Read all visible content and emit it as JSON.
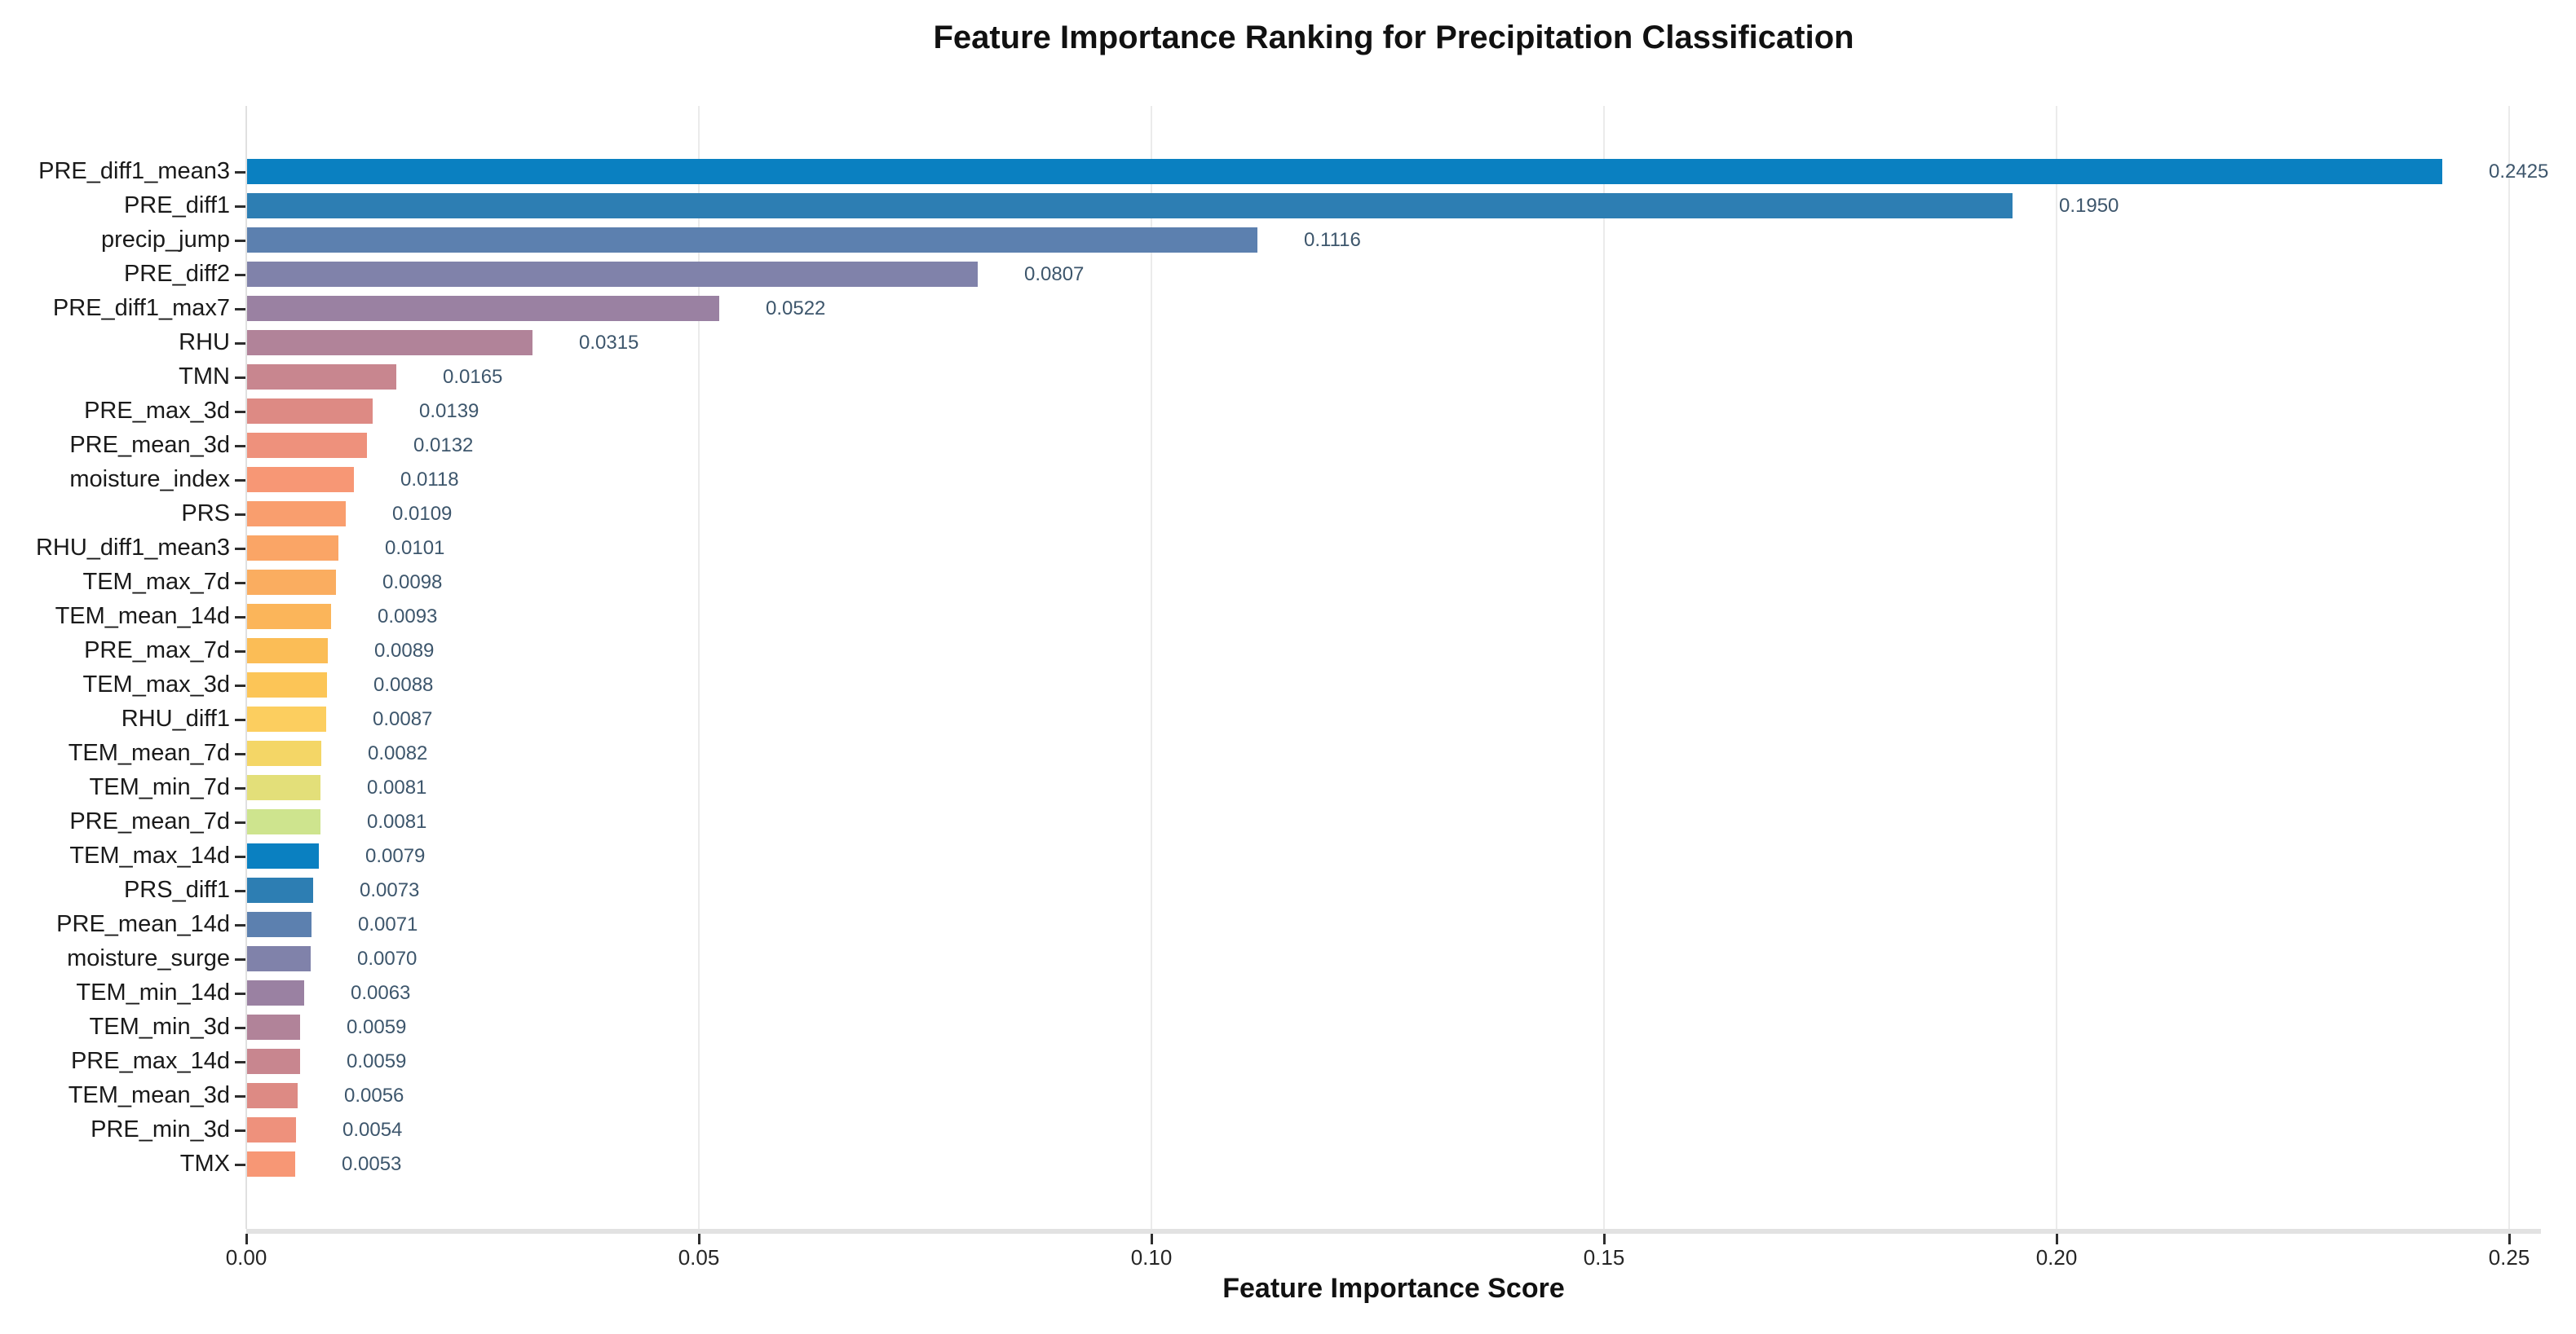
{
  "chart_data": {
    "type": "bar",
    "orientation": "horizontal",
    "title": "Feature Importance Ranking for Precipitation Classification",
    "xlabel": "Feature Importance Score",
    "ylabel": "",
    "legend": "none",
    "grid": "vertical-gridlines-on",
    "categories": [
      "PRE_diff1_mean3",
      "PRE_diff1",
      "precip_jump",
      "PRE_diff2",
      "PRE_diff1_max7",
      "RHU",
      "TMN",
      "PRE_max_3d",
      "PRE_mean_3d",
      "moisture_index",
      "PRS",
      "RHU_diff1_mean3",
      "TEM_max_7d",
      "TEM_mean_14d",
      "PRE_max_7d",
      "TEM_max_3d",
      "RHU_diff1",
      "TEM_mean_7d",
      "TEM_min_7d",
      "PRE_mean_7d",
      "TEM_max_14d",
      "PRS_diff1",
      "PRE_mean_14d",
      "moisture_surge",
      "TEM_min_14d",
      "TEM_min_3d",
      "PRE_max_14d",
      "TEM_mean_3d",
      "PRE_min_3d",
      "TMX"
    ],
    "values": [
      0.2425,
      0.195,
      0.1116,
      0.0807,
      0.0522,
      0.0315,
      0.0165,
      0.0139,
      0.0132,
      0.0118,
      0.0109,
      0.0101,
      0.0098,
      0.0093,
      0.0089,
      0.0088,
      0.0087,
      0.0082,
      0.0081,
      0.0081,
      0.0079,
      0.0073,
      0.0071,
      0.007,
      0.0063,
      0.0059,
      0.0059,
      0.0056,
      0.0054,
      0.0053
    ],
    "value_label_decimals": 4,
    "xlim": [
      0,
      0.2535
    ],
    "xtick_values": [
      0,
      0.05,
      0.1,
      0.15,
      0.2,
      0.25
    ],
    "xtick_labels": [
      "0.00",
      "0.05",
      "0.10",
      "0.15",
      "0.20",
      "0.25"
    ],
    "palette_cycle": [
      "#0a80c1",
      "#2d7eb3",
      "#5c80af",
      "#8082aa",
      "#9a81a2",
      "#b18399",
      "#c8868f",
      "#dd8a84",
      "#ee917c",
      "#f79775",
      "#f99e6e",
      "#faa566",
      "#faad60",
      "#fbb55a",
      "#fbbd56",
      "#fcc557",
      "#fcce5f",
      "#f4d666",
      "#e3df79",
      "#cee48e"
    ],
    "colors": {
      "value_label": "#3d566c",
      "y_tick_label": "#1a1a1a",
      "x_tick_label": "#262626",
      "tick_mark": "#2e2e2e",
      "gridline": "#ebebeb",
      "left_spine": "#e0e0e0",
      "bottom_spine": "#e2e2e2",
      "title": "#111111",
      "axis_label": "#111111",
      "background": "#ffffff"
    }
  }
}
